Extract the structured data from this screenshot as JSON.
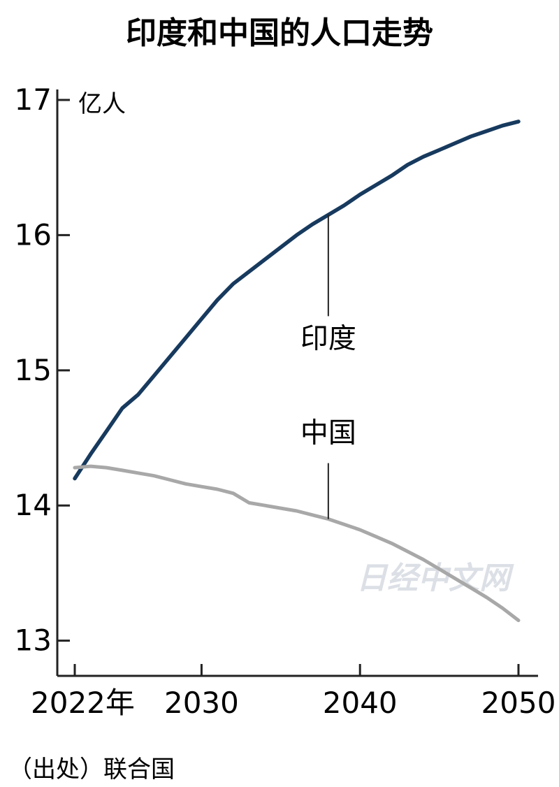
{
  "chart_data": {
    "type": "line",
    "title": "印度和中国的人口走势",
    "unit": "亿人",
    "x_tick_labels": [
      "2022年",
      "2030",
      "2040",
      "2050"
    ],
    "x_ticks": [
      2022,
      2030,
      2040,
      2050
    ],
    "xlim": [
      2022,
      2050
    ],
    "y_ticks": [
      13,
      14,
      15,
      16,
      17
    ],
    "y_tick_labels": [
      "13",
      "14",
      "15",
      "16",
      "17"
    ],
    "ylim": [
      12.75,
      17
    ],
    "grid": false,
    "series": [
      {
        "name": "印度",
        "color": "#173a5e",
        "label_year": 2038,
        "x": [
          2022,
          2023,
          2024,
          2025,
          2026,
          2027,
          2028,
          2029,
          2030,
          2031,
          2032,
          2033,
          2034,
          2035,
          2036,
          2037,
          2038,
          2039,
          2040,
          2041,
          2042,
          2043,
          2044,
          2045,
          2046,
          2047,
          2048,
          2049,
          2050
        ],
        "values": [
          14.2,
          14.38,
          14.55,
          14.72,
          14.82,
          14.96,
          15.1,
          15.24,
          15.38,
          15.52,
          15.64,
          15.73,
          15.82,
          15.91,
          16.0,
          16.08,
          16.15,
          16.22,
          16.3,
          16.37,
          16.44,
          16.52,
          16.58,
          16.63,
          16.68,
          16.73,
          16.77,
          16.81,
          16.84
        ]
      },
      {
        "name": "中国",
        "color": "#a8a8a8",
        "label_year": 2038,
        "x": [
          2022,
          2023,
          2024,
          2025,
          2026,
          2027,
          2028,
          2029,
          2030,
          2031,
          2032,
          2033,
          2034,
          2035,
          2036,
          2037,
          2038,
          2039,
          2040,
          2041,
          2042,
          2043,
          2044,
          2045,
          2046,
          2047,
          2048,
          2049,
          2050
        ],
        "values": [
          14.28,
          14.29,
          14.28,
          14.26,
          14.24,
          14.22,
          14.19,
          14.16,
          14.14,
          14.12,
          14.09,
          14.02,
          14.0,
          13.98,
          13.96,
          13.93,
          13.9,
          13.86,
          13.82,
          13.77,
          13.72,
          13.66,
          13.6,
          13.53,
          13.46,
          13.39,
          13.32,
          13.24,
          13.15
        ]
      }
    ]
  },
  "footer": {
    "source": "（出处）联合国",
    "watermark": "日经中文网"
  }
}
